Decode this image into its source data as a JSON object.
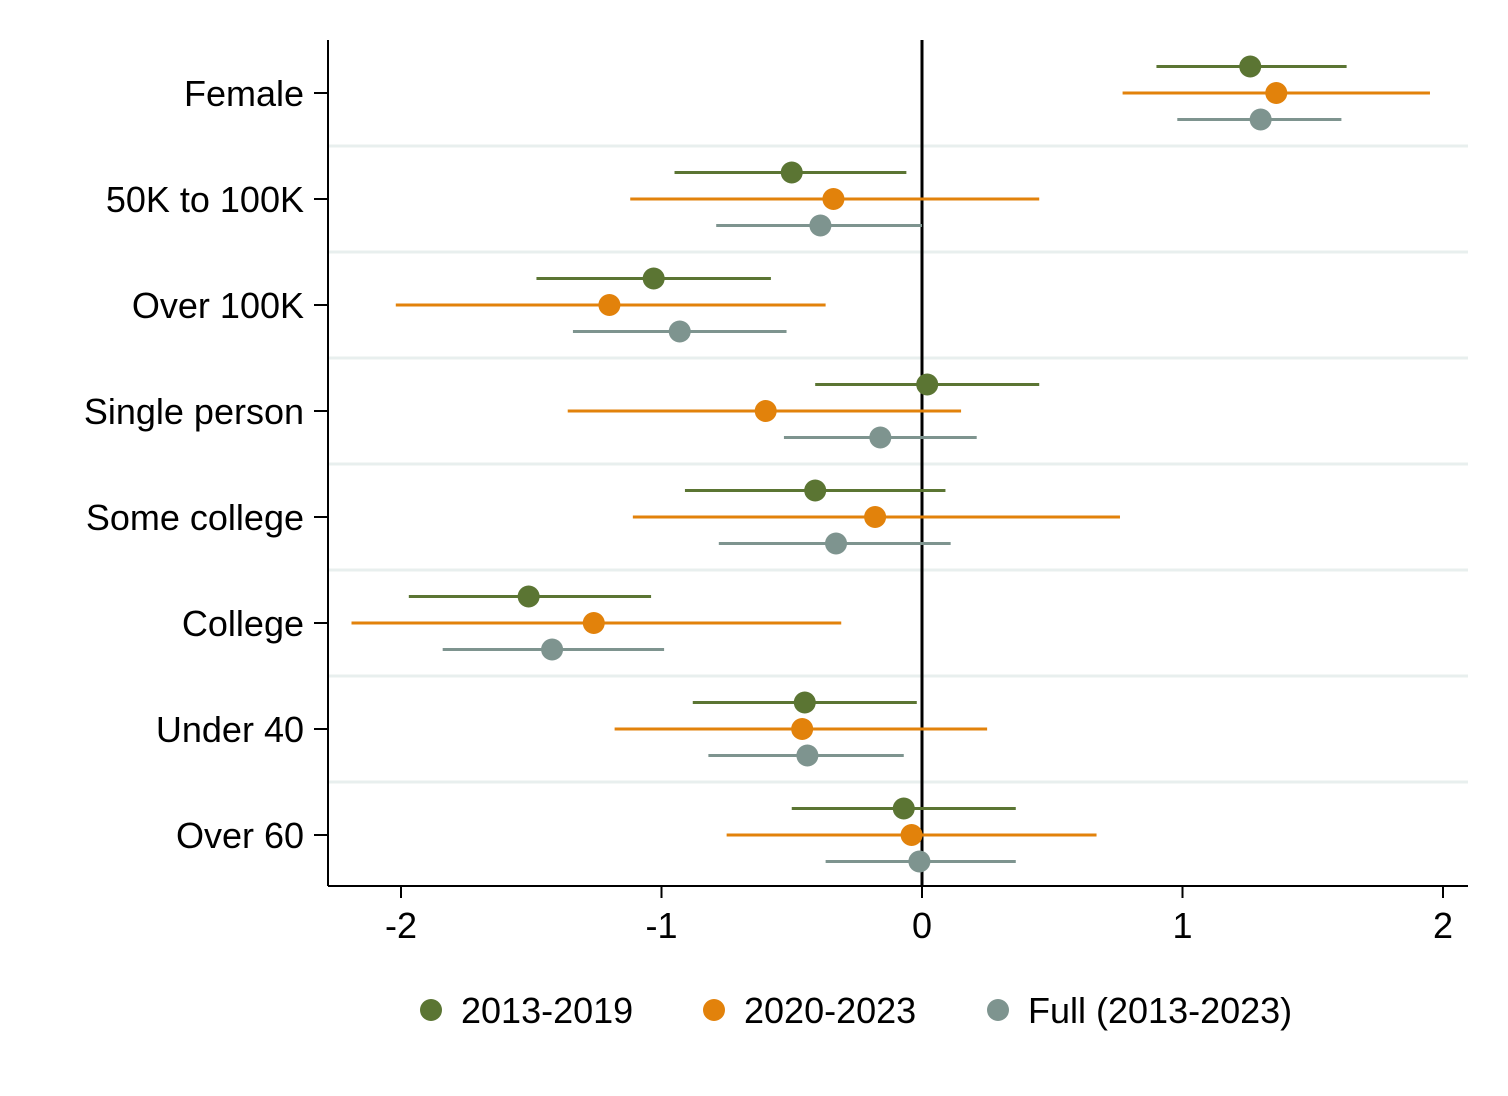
{
  "chart_data": {
    "type": "scatter",
    "title": "",
    "xlabel": "",
    "ylabel": "",
    "xlim": [
      -2.28,
      2.1
    ],
    "xticks": [
      -2,
      -1,
      0,
      1,
      2
    ],
    "xtick_labels": [
      "-2",
      "-1",
      "0",
      "1",
      "2"
    ],
    "reference_line_x": 0,
    "grid": "horizontal separators between categories",
    "legend_position": "bottom",
    "categories": [
      "Female",
      "50K to 100K",
      "Over 100K",
      "Single person",
      "Some college",
      "College",
      "Under 40",
      "Over 60"
    ],
    "series": [
      {
        "name": "2013-2019",
        "color": "#5b7533",
        "estimates": [
          1.26,
          -0.5,
          -1.03,
          0.02,
          -0.41,
          -1.51,
          -0.45,
          -0.07
        ],
        "ci_low": [
          0.9,
          -0.95,
          -1.48,
          -0.41,
          -0.91,
          -1.97,
          -0.88,
          -0.5
        ],
        "ci_high": [
          1.63,
          -0.06,
          -0.58,
          0.45,
          0.09,
          -1.04,
          -0.02,
          0.36
        ]
      },
      {
        "name": "2020-2023",
        "color": "#e2820b",
        "estimates": [
          1.36,
          -0.34,
          -1.2,
          -0.6,
          -0.18,
          -1.26,
          -0.46,
          -0.04
        ],
        "ci_low": [
          0.77,
          -1.12,
          -2.02,
          -1.36,
          -1.11,
          -2.19,
          -1.18,
          -0.75
        ],
        "ci_high": [
          1.95,
          0.45,
          -0.37,
          0.15,
          0.76,
          -0.31,
          0.25,
          0.67
        ]
      },
      {
        "name": "Full (2013-2023)",
        "color": "#7e948f",
        "estimates": [
          1.3,
          -0.39,
          -0.93,
          -0.16,
          -0.33,
          -1.42,
          -0.44,
          -0.01
        ],
        "ci_low": [
          0.98,
          -0.79,
          -1.34,
          -0.53,
          -0.78,
          -1.84,
          -0.82,
          -0.37
        ],
        "ci_high": [
          1.61,
          0.0,
          -0.52,
          0.21,
          0.11,
          -0.99,
          -0.07,
          0.36
        ]
      }
    ]
  }
}
